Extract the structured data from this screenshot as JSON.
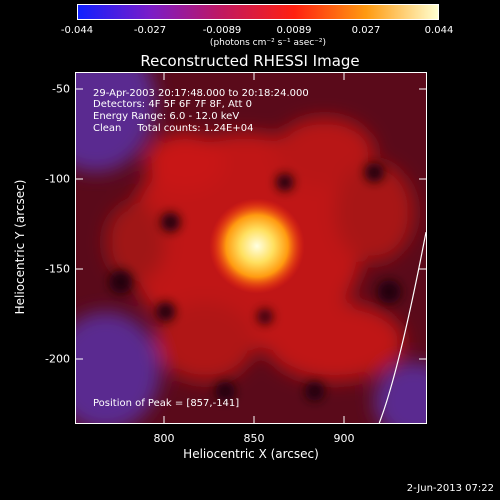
{
  "colorbar": {
    "ticks": [
      "-0.044",
      "-0.027",
      "-0.0089",
      "0.0089",
      "0.027",
      "0.044"
    ],
    "unit_label": "(photons cm⁻² s⁻¹ asec⁻²)",
    "colors": [
      "#1020ff",
      "#7a1cc8",
      "#c01860",
      "#ff2010",
      "#ff9a10",
      "#ffffd0"
    ]
  },
  "title": "Reconstructed RHESSI Image",
  "annotations": {
    "time_range": "29-Apr-2003 20:17:48.000 to 20:18:24.000",
    "detectors": "Detectors: 4F 5F 6F 7F 8F, Att 0",
    "energy": "Energy Range: 6.0 - 12.0 keV",
    "clean": "Clean     Total counts: 1.24E+04",
    "peak": "Position of Peak = [857,-141]"
  },
  "axes": {
    "x_label": "Heliocentric X (arcsec)",
    "y_label": "Heliocentric Y (arcsec)",
    "x_ticks": [
      "800",
      "850",
      "900"
    ],
    "y_ticks": [
      "-50",
      "-100",
      "-150",
      "-200"
    ]
  },
  "footer": "2-Jun-2013 07:22"
}
